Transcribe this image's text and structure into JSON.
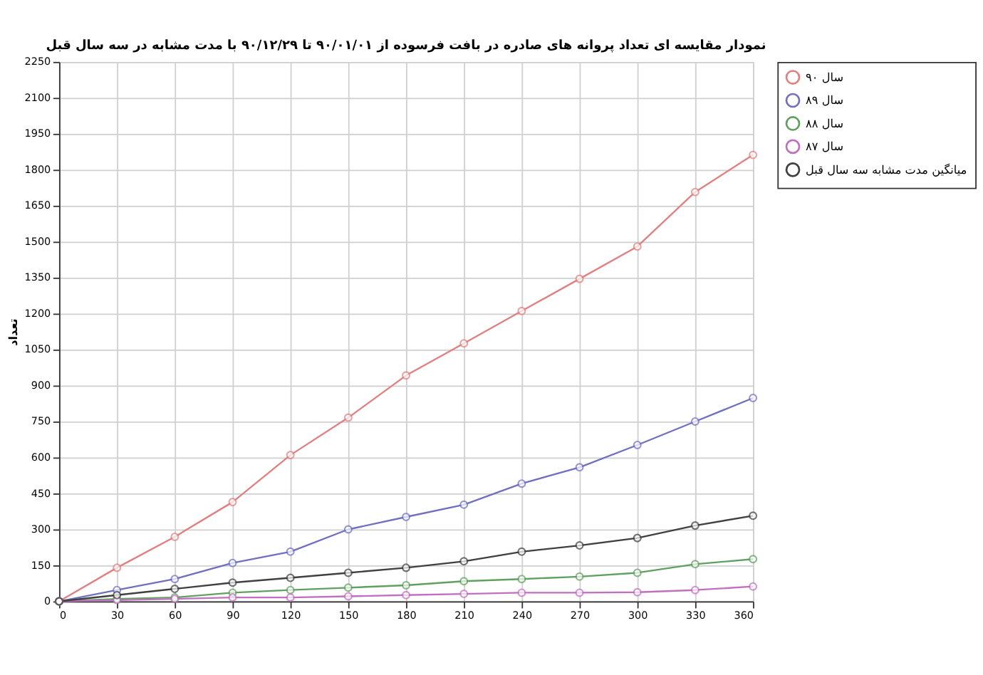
{
  "chart_data": {
    "type": "line",
    "title": "نمودار مقایسه ای تعداد پروانه های صادره در بافت فرسوده از ۹۰/۰۱/۰۱ تا ۹۰/۱۲/۲۹ با مدت مشابه در سه سال قبل",
    "ylabel": "تعداد",
    "x": [
      0,
      30,
      60,
      90,
      120,
      150,
      180,
      210,
      240,
      270,
      300,
      330,
      360
    ],
    "series": [
      {
        "name": "سال ۹۰",
        "color": "#e08080",
        "values": [
          0,
          140,
          269,
          414,
          610,
          766,
          942,
          1076,
          1211,
          1345,
          1480,
          1707,
          1862
        ]
      },
      {
        "name": "سال ۸۹",
        "color": "#7070c0",
        "values": [
          0,
          47,
          93,
          160,
          207,
          300,
          352,
          403,
          491,
          559,
          652,
          750,
          848
        ]
      },
      {
        "name": "سال ۸۸",
        "color": "#60a060",
        "values": [
          0,
          10,
          16,
          36,
          47,
          57,
          67,
          84,
          93,
          103,
          119,
          155,
          176
        ]
      },
      {
        "name": "سال ۸۷",
        "color": "#c070c0",
        "values": [
          0,
          5,
          10,
          16,
          16,
          21,
          26,
          31,
          36,
          36,
          38,
          47,
          62
        ]
      },
      {
        "name": "میانگین مدت مشابه سه سال قبل",
        "color": "#404040",
        "values": [
          0,
          26,
          52,
          78,
          98,
          119,
          140,
          167,
          207,
          233,
          264,
          316,
          357
        ]
      }
    ],
    "xlim": [
      0,
      360
    ],
    "xticks": [
      0,
      30,
      60,
      90,
      120,
      150,
      180,
      210,
      240,
      270,
      300,
      330,
      360
    ],
    "ylim": [
      0,
      2250
    ],
    "yticks": [
      0,
      150,
      300,
      450,
      600,
      750,
      900,
      1050,
      1200,
      1350,
      1500,
      1650,
      1800,
      1950,
      2100,
      2250
    ],
    "grid": true,
    "legend": "top right",
    "marker": "circle",
    "line_style": "solid"
  }
}
